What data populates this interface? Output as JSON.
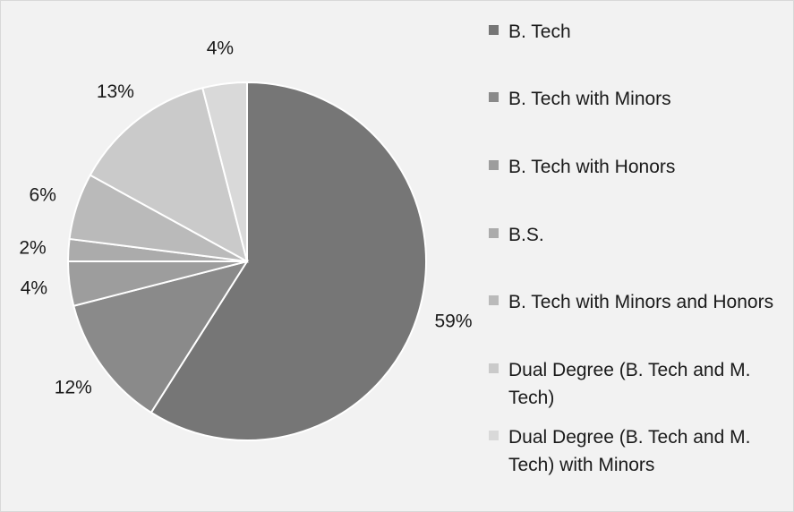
{
  "chart_data": {
    "type": "pie",
    "slices": [
      {
        "label": "B. Tech",
        "value": 59,
        "value_label": "59%",
        "color": "#767676"
      },
      {
        "label": "B. Tech with Minors",
        "value": 12,
        "value_label": "12%",
        "color": "#8a8a8a"
      },
      {
        "label": "B. Tech with Honors",
        "value": 4,
        "value_label": "4%",
        "color": "#9d9d9d"
      },
      {
        "label": "B.S.",
        "value": 2,
        "value_label": "2%",
        "color": "#ababab"
      },
      {
        "label": "B. Tech with Minors and Honors",
        "value": 6,
        "value_label": "6%",
        "color": "#bababa"
      },
      {
        "label": "Dual Degree (B. Tech and M. Tech)",
        "value": 13,
        "value_label": "13%",
        "color": "#cacaca"
      },
      {
        "label": "Dual Degree (B. Tech and M. Tech) with Minors",
        "value": 4,
        "value_label": "4%",
        "color": "#d9d9d9"
      }
    ],
    "start_angle": "12 o'clock",
    "direction": "clockwise",
    "legend_position": "right",
    "slice_border_color": "#ffffff"
  },
  "legend": {
    "items": [
      {
        "text": "B. Tech",
        "color": "#767676"
      },
      {
        "text": "B. Tech with Minors",
        "color": "#8a8a8a"
      },
      {
        "text": "B. Tech with Honors",
        "color": "#9d9d9d"
      },
      {
        "text": "B.S.",
        "color": "#ababab"
      },
      {
        "text": "B. Tech with Minors and Honors",
        "color": "#bababa"
      },
      {
        "text": "Dual Degree (B. Tech and M. Tech)",
        "color": "#cacaca"
      },
      {
        "text": "Dual Degree (B. Tech and M. Tech) with Minors",
        "color": "#d9d9d9"
      }
    ]
  }
}
